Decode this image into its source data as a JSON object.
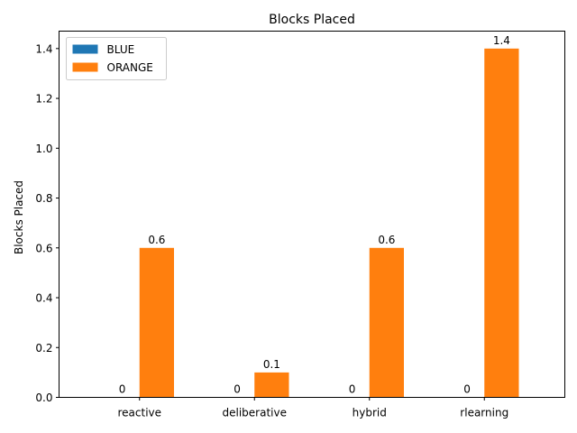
{
  "chart_data": {
    "type": "bar",
    "title": "Blocks Placed",
    "xlabel": "",
    "ylabel": "Blocks Placed",
    "categories": [
      "reactive",
      "deliberative",
      "hybrid",
      "rlearning"
    ],
    "series": [
      {
        "name": "BLUE",
        "color": "#1f77b4",
        "values": [
          0,
          0,
          0,
          0
        ],
        "labels": [
          "0",
          "0",
          "0",
          "0"
        ]
      },
      {
        "name": "ORANGE",
        "color": "#ff7f0e",
        "values": [
          0.6,
          0.1,
          0.6,
          1.4
        ],
        "labels": [
          "0.6",
          "0.1",
          "0.6",
          "1.4"
        ]
      }
    ],
    "ylim": [
      0,
      1.47
    ],
    "yticks": [
      {
        "value": 0.0,
        "label": "0.0"
      },
      {
        "value": 0.2,
        "label": "0.2"
      },
      {
        "value": 0.4,
        "label": "0.4"
      },
      {
        "value": 0.6,
        "label": "0.6"
      },
      {
        "value": 0.8,
        "label": "0.8"
      },
      {
        "value": 1.0,
        "label": "1.0"
      },
      {
        "value": 1.2,
        "label": "1.2"
      },
      {
        "value": 1.4,
        "label": "1.4"
      }
    ],
    "grid": false,
    "legend": "top-left"
  }
}
